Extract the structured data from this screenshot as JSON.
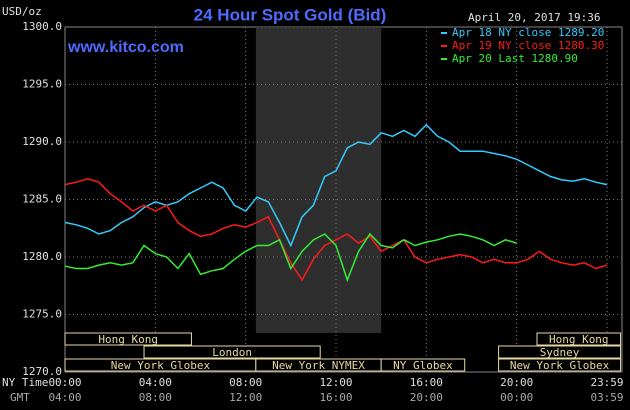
{
  "chart_data": {
    "type": "line",
    "title": "24 Hour Spot Gold (Bid)",
    "subtitle": "April 20, 2017 19:36",
    "site": "www.kitco.com",
    "y_label": "USD/oz",
    "x_label": "NY Time",
    "x2_label": "GMT",
    "xlim": [
      0,
      24
    ],
    "ylim": [
      1270,
      1300
    ],
    "xticks": [
      {
        "value": 0,
        "label": "00:00",
        "gmt_label": "04:00"
      },
      {
        "value": 4,
        "label": "04:00",
        "gmt_label": "08:00"
      },
      {
        "value": 8,
        "label": "08:00",
        "gmt_label": "12:00"
      },
      {
        "value": 12,
        "label": "12:00",
        "gmt_label": "16:00"
      },
      {
        "value": 16,
        "label": "16:00",
        "gmt_label": "20:00"
      },
      {
        "value": 20,
        "label": "20:00",
        "gmt_label": "00:00"
      },
      {
        "value": 24,
        "label": "23:59",
        "gmt_label": "03:59"
      }
    ],
    "yticks": [
      {
        "value": 1270,
        "label": "1270.0"
      },
      {
        "value": 1275,
        "label": "1275.0"
      },
      {
        "value": 1280,
        "label": "1280.0"
      },
      {
        "value": 1285,
        "label": "1285.0"
      },
      {
        "value": 1290,
        "label": "1290.0"
      },
      {
        "value": 1295,
        "label": "1295.0"
      },
      {
        "value": 1300,
        "label": "1300.0"
      }
    ],
    "grid": true,
    "sessions": [
      {
        "label": "Hong Kong",
        "row": 0,
        "start": 0,
        "end": 5.6
      },
      {
        "label": "Hong Kong",
        "row": 0,
        "start": 20.9,
        "end": 24.6
      },
      {
        "label": "London",
        "row": 1,
        "start": 3.5,
        "end": 11.3
      },
      {
        "label": "Sydney",
        "row": 1,
        "start": 19.2,
        "end": 24.6
      },
      {
        "label": "New York Globex",
        "row": 2,
        "start": 0,
        "end": 8.45
      },
      {
        "label": "New York NYMEX",
        "row": 2,
        "start": 8.45,
        "end": 14.0
      },
      {
        "label": "NY Globex",
        "row": 2,
        "start": 14.0,
        "end": 17.7
      },
      {
        "label": "New York Globex",
        "row": 2,
        "start": 19.2,
        "end": 24.6
      }
    ],
    "x": [
      0,
      0.5,
      1,
      1.5,
      2,
      2.5,
      3,
      3.5,
      4,
      4.5,
      5,
      5.5,
      6,
      6.5,
      7,
      7.5,
      8,
      8.5,
      9,
      9.5,
      10,
      10.5,
      11,
      11.5,
      12,
      12.5,
      13,
      13.5,
      14,
      14.5,
      15,
      15.5,
      16,
      16.5,
      17,
      17.5,
      18,
      18.5,
      19,
      19.5,
      20,
      20.5,
      21,
      21.5,
      22,
      22.5,
      23,
      23.5,
      24
    ],
    "series": [
      {
        "name": "Apr 18 NY close 1289.20",
        "color": "#33ccff",
        "values": [
          1283.0,
          1282.8,
          1282.5,
          1282.0,
          1282.3,
          1283.0,
          1283.5,
          1284.3,
          1284.8,
          1284.5,
          1284.8,
          1285.5,
          1286.0,
          1286.5,
          1286.0,
          1284.5,
          1284.0,
          1285.2,
          1284.8,
          1283.0,
          1281.0,
          1283.5,
          1284.5,
          1287.0,
          1287.5,
          1289.5,
          1290.0,
          1289.8,
          1290.8,
          1290.5,
          1291.0,
          1290.5,
          1291.5,
          1290.5,
          1290.0,
          1289.2,
          1289.2,
          1289.2,
          1289.0,
          1288.8,
          1288.5,
          1288.0,
          1287.5,
          1287.0,
          1286.7,
          1286.6,
          1286.8,
          1286.5,
          1286.3
        ]
      },
      {
        "name": "Apr 19 NY close 1280.30",
        "color": "#ff1a1a",
        "values": [
          1286.3,
          1286.5,
          1286.8,
          1286.5,
          1285.5,
          1284.8,
          1284.0,
          1284.5,
          1284.0,
          1284.5,
          1283.0,
          1282.3,
          1281.8,
          1282.0,
          1282.5,
          1282.8,
          1282.6,
          1283.0,
          1283.5,
          1281.5,
          1279.5,
          1278.0,
          1279.8,
          1281.0,
          1281.5,
          1282.0,
          1281.2,
          1281.8,
          1280.5,
          1281.0,
          1281.5,
          1280.0,
          1279.5,
          1279.8,
          1280.0,
          1280.2,
          1280.0,
          1279.5,
          1279.8,
          1279.5,
          1279.5,
          1279.8,
          1280.5,
          1279.8,
          1279.5,
          1279.3,
          1279.5,
          1279.0,
          1279.3
        ]
      },
      {
        "name": "Apr 20 Last 1280.90",
        "color": "#33ee33",
        "values": [
          1279.2,
          1279.0,
          1279.0,
          1279.3,
          1279.5,
          1279.3,
          1279.5,
          1281.0,
          1280.3,
          1280.0,
          1279.0,
          1280.3,
          1278.5,
          1278.8,
          1279.0,
          1279.8,
          1280.5,
          1281.0,
          1281.0,
          1281.5,
          1279.0,
          1280.5,
          1281.5,
          1282.0,
          1281.0,
          1278.0,
          1280.5,
          1282.0,
          1281.0,
          1280.8,
          1281.5,
          1281.0,
          1281.3,
          1281.5,
          1281.8,
          1282.0,
          1281.8,
          1281.5,
          1281.0,
          1281.5,
          1281.2,
          null,
          null,
          null,
          null,
          null,
          null,
          null,
          null
        ]
      }
    ]
  }
}
